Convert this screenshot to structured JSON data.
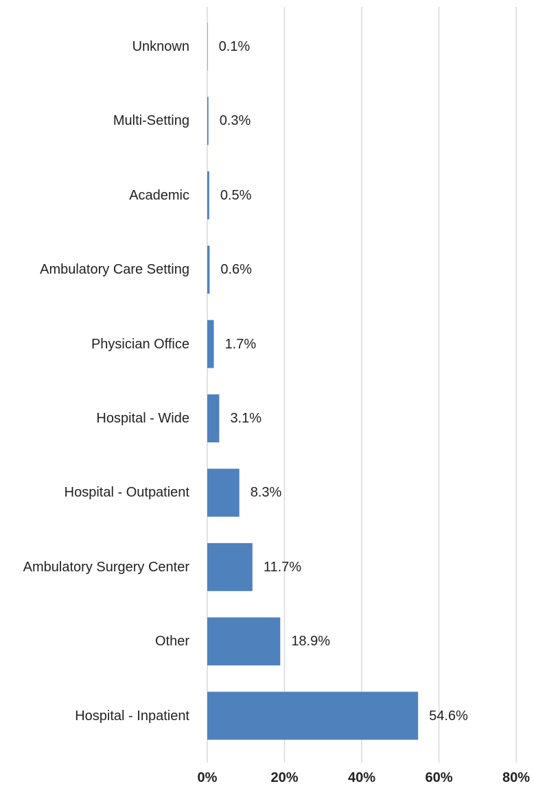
{
  "chart_data": {
    "type": "bar",
    "orientation": "horizontal",
    "categories": [
      "Unknown",
      "Multi-Setting",
      "Academic",
      "Ambulatory Care Setting",
      "Physician Office",
      "Hospital - Wide",
      "Hospital - Outpatient",
      "Ambulatory Surgery Center",
      "Other",
      "Hospital - Inpatient"
    ],
    "values": [
      0.1,
      0.3,
      0.5,
      0.6,
      1.7,
      3.1,
      8.3,
      11.7,
      18.9,
      54.6
    ],
    "value_labels": [
      "0.1%",
      "0.3%",
      "0.5%",
      "0.6%",
      "1.7%",
      "3.1%",
      "8.3%",
      "11.7%",
      "18.9%",
      "54.6%"
    ],
    "color": "#4f81bd",
    "xlim": [
      0,
      80
    ],
    "xticks": [
      {
        "value": 0,
        "label": "0%"
      },
      {
        "value": 20,
        "label": "20%"
      },
      {
        "value": 40,
        "label": "40%"
      },
      {
        "value": 60,
        "label": "60%"
      },
      {
        "value": 80,
        "label": "80%"
      }
    ],
    "grid": true
  }
}
